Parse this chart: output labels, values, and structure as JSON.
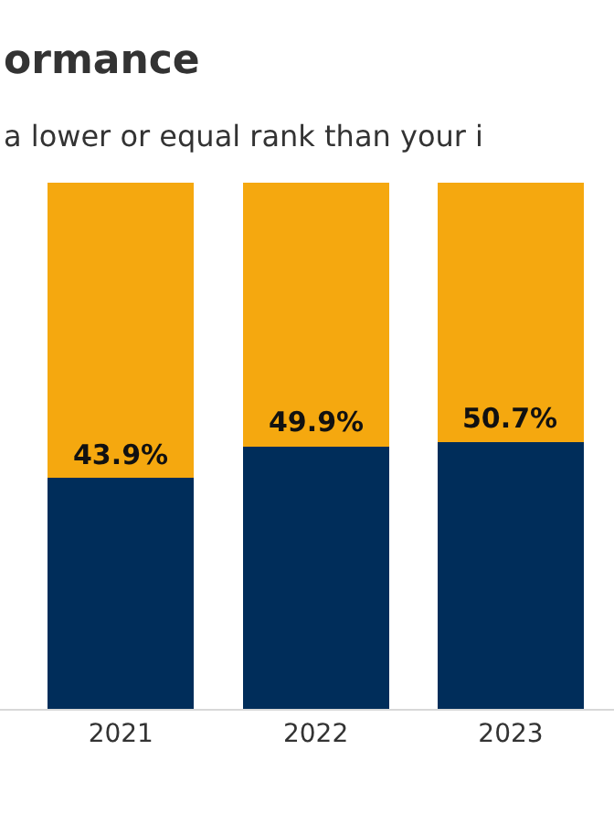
{
  "chart_data": {
    "type": "bar",
    "title": "ormance",
    "subtitle": "a lower or equal rank than your i",
    "categories": [
      "2021",
      "2022",
      "2023"
    ],
    "stacked": true,
    "ylim": [
      0,
      100
    ],
    "tick_labels": "x",
    "series": [
      {
        "color": "#002d5a",
        "values": [
          43.9,
          49.9,
          50.7
        ],
        "value_labels": [
          "43.9%",
          "49.9%",
          "50.7%"
        ]
      },
      {
        "color": "#f5a80f",
        "values": [
          56.1,
          50.1,
          49.3
        ]
      }
    ]
  }
}
